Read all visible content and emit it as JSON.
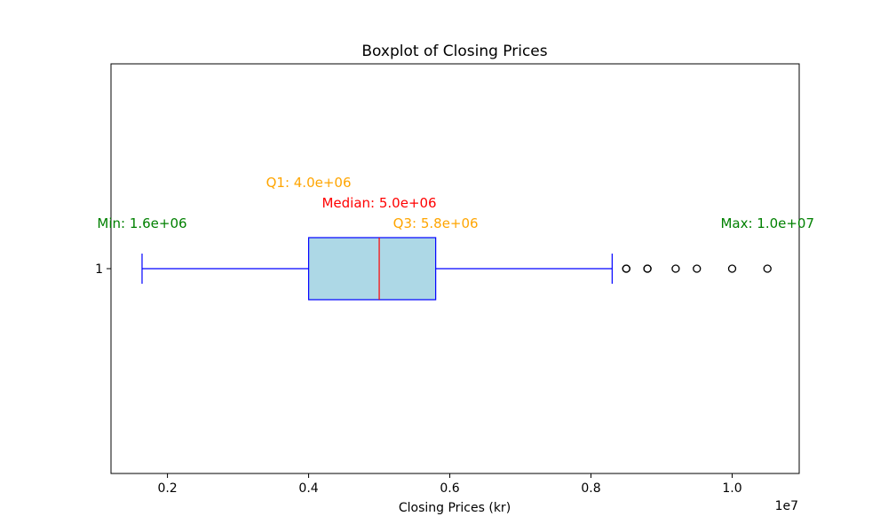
{
  "chart_data": {
    "type": "boxplot",
    "orientation": "horizontal",
    "title": "Boxplot of Closing Prices",
    "xlabel": "Closing Prices (kr)",
    "ylabel": "",
    "x_offset_label": "1e7",
    "xlim": [
      1200000,
      10950000
    ],
    "x_ticks": [
      2000000,
      4000000,
      6000000,
      8000000,
      10000000
    ],
    "x_tick_labels": [
      "0.2",
      "0.4",
      "0.6",
      "0.8",
      "1.0"
    ],
    "y_tick_labels": [
      "1"
    ],
    "grid": false,
    "series": [
      {
        "whisker_low": 1640000,
        "q1": 4000000,
        "median": 5000000,
        "q3": 5800000,
        "whisker_high": 8300000,
        "outliers": [
          8500000,
          8500000,
          8800000,
          8800000,
          9200000,
          9500000,
          10000000,
          10500000
        ]
      }
    ],
    "annotations": [
      {
        "key": "min",
        "text": "Min: 1.6e+06",
        "color": "#008000"
      },
      {
        "key": "q1",
        "text": "Q1: 4.0e+06",
        "color": "#FFA500"
      },
      {
        "key": "median",
        "text": "Median: 5.0e+06",
        "color": "#FF0000"
      },
      {
        "key": "q3",
        "text": "Q3: 5.8e+06",
        "color": "#FFA500"
      },
      {
        "key": "max",
        "text": "Max: 1.0e+07",
        "color": "#008000"
      }
    ],
    "colors": {
      "box_fill": "#ADD8E6",
      "box_edge": "#0000FF",
      "whisker": "#0000FF",
      "median_line": "#FF0000",
      "outlier_edge": "#000000"
    }
  }
}
